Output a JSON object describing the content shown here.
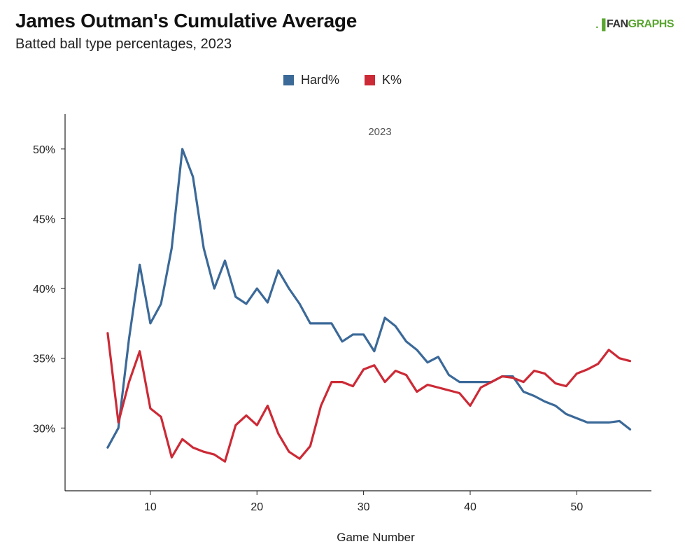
{
  "header": {
    "title": "James Outman's Cumulative Average",
    "subtitle": "Batted ball type percentages, 2023"
  },
  "logo": {
    "mark": ".▐",
    "fan": "FAN",
    "graphs": "GRAPHS"
  },
  "chart_data": {
    "type": "line",
    "title": "James Outman's Cumulative Average",
    "subtitle": "Batted ball type percentages, 2023",
    "xlabel": "Game Number",
    "ylabel": "",
    "annotation": "2023",
    "xlim": [
      2,
      57
    ],
    "ylim": [
      25.5,
      52.5
    ],
    "xticks": [
      10,
      20,
      30,
      40,
      50
    ],
    "xtick_labels": [
      "10",
      "20",
      "30",
      "40",
      "50"
    ],
    "yticks": [
      30,
      35,
      40,
      45,
      50
    ],
    "ytick_labels": [
      "30%",
      "35%",
      "40%",
      "45%",
      "50%"
    ],
    "grid": false,
    "legend_position": "top-center",
    "x": [
      6,
      7,
      8,
      9,
      10,
      11,
      12,
      13,
      14,
      15,
      16,
      17,
      18,
      19,
      20,
      21,
      22,
      23,
      24,
      25,
      26,
      27,
      28,
      29,
      30,
      31,
      32,
      33,
      34,
      35,
      36,
      37,
      38,
      39,
      40,
      41,
      42,
      43,
      44,
      45,
      46,
      47,
      48,
      49,
      50,
      51,
      52,
      53,
      54,
      55
    ],
    "series": [
      {
        "name": "Hard%",
        "color": "#3b6998",
        "values": [
          28.6,
          30.0,
          36.4,
          41.7,
          37.5,
          38.9,
          42.9,
          50.0,
          48.0,
          42.9,
          40.0,
          42.0,
          39.4,
          38.9,
          40.0,
          39.0,
          41.3,
          40.0,
          38.9,
          37.5,
          37.5,
          37.5,
          36.2,
          36.7,
          36.7,
          35.5,
          37.9,
          37.3,
          36.2,
          35.6,
          34.7,
          35.1,
          33.8,
          33.3,
          33.3,
          33.3,
          33.3,
          33.7,
          33.7,
          32.6,
          32.3,
          31.9,
          31.6,
          31.0,
          30.7,
          30.4,
          30.4,
          30.4,
          30.5,
          29.9
        ]
      },
      {
        "name": "K%",
        "color": "#cc2a36",
        "values": [
          36.8,
          30.4,
          33.3,
          35.5,
          31.4,
          30.8,
          27.9,
          29.2,
          28.6,
          28.3,
          28.1,
          27.6,
          30.2,
          30.9,
          30.2,
          31.6,
          29.6,
          28.3,
          27.8,
          28.7,
          31.6,
          33.3,
          33.3,
          33.0,
          34.2,
          34.5,
          33.3,
          34.1,
          33.8,
          32.6,
          33.1,
          32.9,
          32.7,
          32.5,
          31.6,
          32.9,
          33.3,
          33.7,
          33.6,
          33.3,
          34.1,
          33.9,
          33.2,
          33.0,
          33.9,
          34.2,
          34.6,
          35.6,
          35.0,
          34.8
        ]
      }
    ]
  }
}
